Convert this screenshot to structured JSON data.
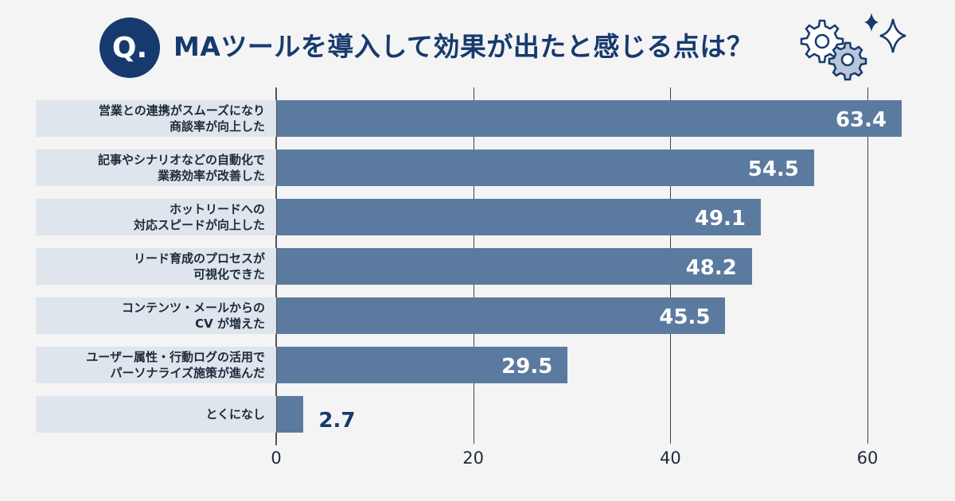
{
  "title": {
    "badge": "Q.",
    "text": "MAツールを導入して効果が出たと感じる点は？"
  },
  "colors": {
    "bar": "#5b7aa0",
    "label_band": "#dfe5ec",
    "title": "#173a6e",
    "background": "#f4f4f4"
  },
  "chart_data": {
    "type": "bar",
    "orientation": "horizontal",
    "title": "MAツールを導入して効果が出たと感じる点は？",
    "categories": [
      [
        "営業との連携がスムーズになり",
        "商談率が向上した"
      ],
      [
        "記事やシナリオなどの自動化で",
        "業務効率が改善した"
      ],
      [
        "ホットリードへの",
        "対応スピードが向上した"
      ],
      [
        "リード育成のプロセスが",
        "可視化できた"
      ],
      [
        "コンテンツ・メールからの",
        "CV が増えた"
      ],
      [
        "ユーザー属性・行動ログの活用で",
        "パーソナライズ施策が進んだ"
      ],
      [
        "とくになし"
      ]
    ],
    "values": [
      63.4,
      54.5,
      49.1,
      48.2,
      45.5,
      29.5,
      2.7
    ],
    "value_labels": [
      "63.4",
      "54.5",
      "49.1",
      "48.2",
      "45.5",
      "29.5",
      "2.7"
    ],
    "xlim": [
      0,
      65
    ],
    "xticks": [
      0,
      20,
      40,
      60
    ],
    "xtick_labels": [
      "0",
      "20",
      "40",
      "60"
    ],
    "grid": true,
    "xlabel": "",
    "ylabel": ""
  }
}
